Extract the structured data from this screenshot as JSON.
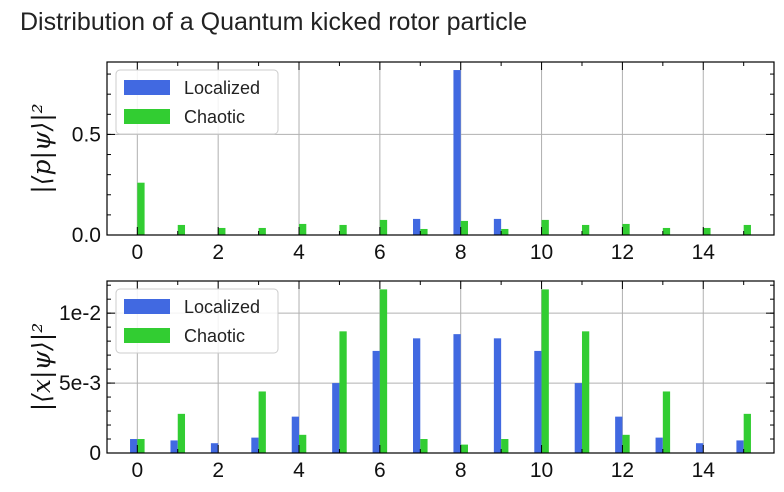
{
  "figure_title": "Distribution of a Quantum kicked rotor particle",
  "colors": {
    "localized": "#4169e1",
    "chaotic": "#32cd32"
  },
  "chart_data": [
    {
      "type": "bar",
      "ylabel": "|⟨p|ψ⟩|²",
      "ylim": [
        0,
        0.86
      ],
      "yticks": [
        0.0,
        0.5
      ],
      "ytick_labels": [
        "0.0",
        "0.5"
      ],
      "xlim": [
        -0.75,
        15.75
      ],
      "xticks": [
        0,
        2,
        4,
        6,
        8,
        10,
        12,
        14
      ],
      "xtick_labels": [
        "0",
        "2",
        "4",
        "6",
        "8",
        "10",
        "12",
        "14"
      ],
      "grid": true,
      "legend_position": "top-left",
      "categories": [
        0,
        1,
        2,
        3,
        4,
        5,
        6,
        7,
        8,
        9,
        10,
        11,
        12,
        13,
        14,
        15
      ],
      "series": [
        {
          "name": "Localized",
          "values": [
            0,
            0,
            0,
            0,
            0,
            0,
            0,
            0.08,
            0.82,
            0.08,
            0,
            0,
            0,
            0,
            0,
            0
          ]
        },
        {
          "name": "Chaotic",
          "values": [
            0.26,
            0.05,
            0.035,
            0.035,
            0.055,
            0.05,
            0.075,
            0.03,
            0.07,
            0.03,
            0.075,
            0.05,
            0.055,
            0.035,
            0.035,
            0.05
          ]
        }
      ]
    },
    {
      "type": "bar",
      "ylabel": "|⟨x|ψ⟩|²",
      "ylim": [
        0,
        0.0123
      ],
      "yticks": [
        0,
        0.005,
        0.01
      ],
      "ytick_labels": [
        "0",
        "5e-3",
        "1e-2"
      ],
      "xlim": [
        -0.75,
        15.75
      ],
      "xticks": [
        0,
        2,
        4,
        6,
        8,
        10,
        12,
        14
      ],
      "xtick_labels": [
        "0",
        "2",
        "4",
        "6",
        "8",
        "10",
        "12",
        "14"
      ],
      "grid": true,
      "legend_position": "top-left",
      "categories": [
        0,
        1,
        2,
        3,
        4,
        5,
        6,
        7,
        8,
        9,
        10,
        11,
        12,
        13,
        14,
        15
      ],
      "series": [
        {
          "name": "Localized",
          "values": [
            0.001,
            0.0009,
            0.0007,
            0.0011,
            0.0026,
            0.005,
            0.0073,
            0.0082,
            0.0085,
            0.0082,
            0.0073,
            0.005,
            0.0026,
            0.0011,
            0.0007,
            0.0009
          ]
        },
        {
          "name": "Chaotic",
          "values": [
            0.001,
            0.0028,
            0.0,
            0.0044,
            0.0013,
            0.0087,
            0.0117,
            0.001,
            0.0006,
            0.001,
            0.0117,
            0.0087,
            0.0013,
            0.0044,
            0.0,
            0.0028
          ]
        }
      ]
    }
  ]
}
